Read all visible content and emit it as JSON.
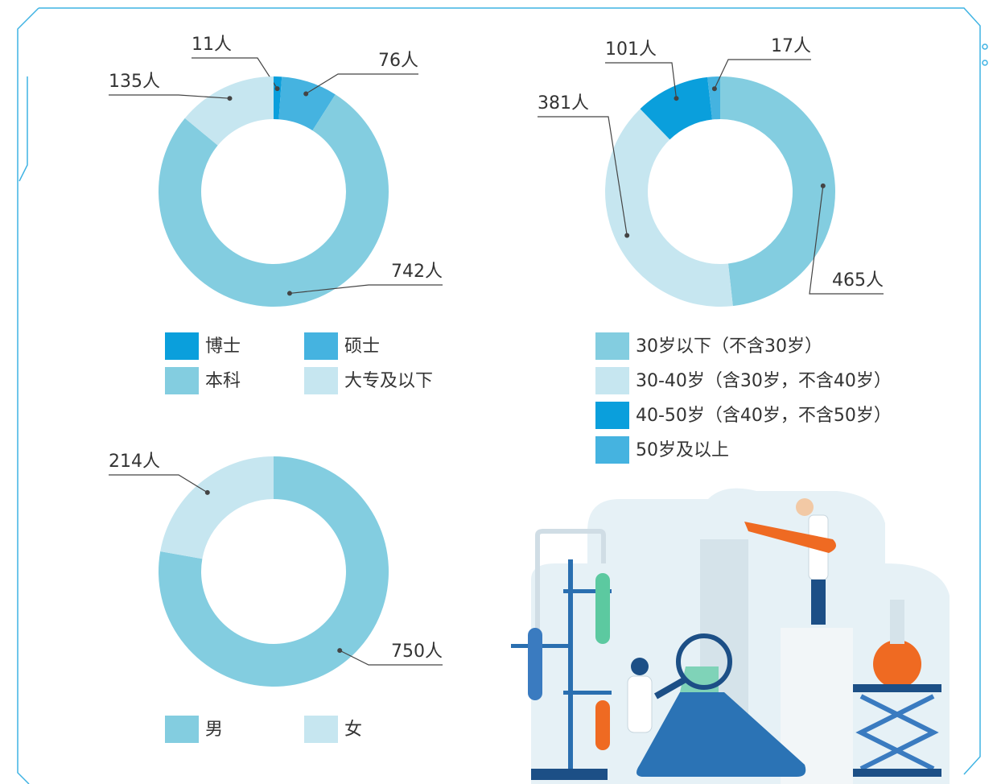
{
  "chart_data": [
    {
      "type": "donut",
      "categories": [
        "博士",
        "硕士",
        "本科",
        "大专及以下"
      ],
      "values": [
        11,
        76,
        742,
        135
      ],
      "value_labels": [
        "11人",
        "76人",
        "742人",
        "135人"
      ],
      "colors": [
        "#0a9fdc",
        "#45b3e0",
        "#83cde0",
        "#c6e6f0"
      ]
    },
    {
      "type": "donut",
      "categories": [
        "30岁以下（不含30岁）",
        "30-40岁（含30岁，不含40岁）",
        "40-50岁（含40岁，不含50岁）",
        "50岁及以上"
      ],
      "values": [
        465,
        381,
        101,
        17
      ],
      "value_labels": [
        "465人",
        "381人",
        "101人",
        "17人"
      ],
      "colors": [
        "#83cde0",
        "#c6e6f0",
        "#0a9fdc",
        "#45b3e0"
      ]
    },
    {
      "type": "donut",
      "categories": [
        "男",
        "女"
      ],
      "values": [
        750,
        214
      ],
      "value_labels": [
        "750人",
        "214人"
      ],
      "colors": [
        "#83cde0",
        "#c6e6f0"
      ]
    }
  ]
}
